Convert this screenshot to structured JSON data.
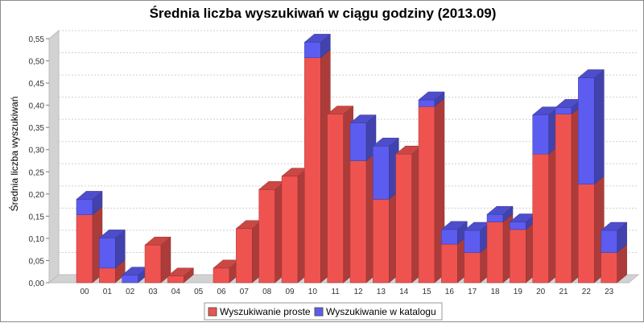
{
  "chart_data": {
    "type": "bar",
    "stacked": true,
    "title": "Średnia liczba wyszukiwań w ciągu godziny (2013.09)",
    "ylabel": "Średnia liczba wyszukiwań",
    "xlabel": "",
    "ylim": [
      0,
      0.55
    ],
    "yticks": [
      "0,00",
      "0,05",
      "0,10",
      "0,15",
      "0,20",
      "0,25",
      "0,30",
      "0,35",
      "0,40",
      "0,45",
      "0,50",
      "0,55"
    ],
    "grid": true,
    "legend_position": "bottom",
    "categories": [
      "00",
      "01",
      "02",
      "03",
      "04",
      "05",
      "06",
      "07",
      "08",
      "09",
      "10",
      "11",
      "12",
      "13",
      "14",
      "15",
      "16",
      "17",
      "18",
      "19",
      "20",
      "21",
      "22",
      "23"
    ],
    "series": [
      {
        "name": "Wyszukiwanie proste",
        "color": "#ef5350",
        "values": [
          0.153,
          0.033,
          0.0,
          0.085,
          0.015,
          0.0,
          0.033,
          0.122,
          0.21,
          0.24,
          0.507,
          0.38,
          0.275,
          0.188,
          0.29,
          0.397,
          0.087,
          0.068,
          0.137,
          0.12,
          0.29,
          0.38,
          0.222,
          0.068
        ]
      },
      {
        "name": "Wyszukiwanie w katalogu",
        "color": "#5c5cf0",
        "values": [
          0.035,
          0.068,
          0.017,
          0.0,
          0.0,
          0.0,
          0.0,
          0.0,
          0.0,
          0.0,
          0.035,
          0.0,
          0.085,
          0.12,
          0.0,
          0.015,
          0.033,
          0.05,
          0.017,
          0.017,
          0.088,
          0.015,
          0.24,
          0.05
        ]
      }
    ]
  }
}
